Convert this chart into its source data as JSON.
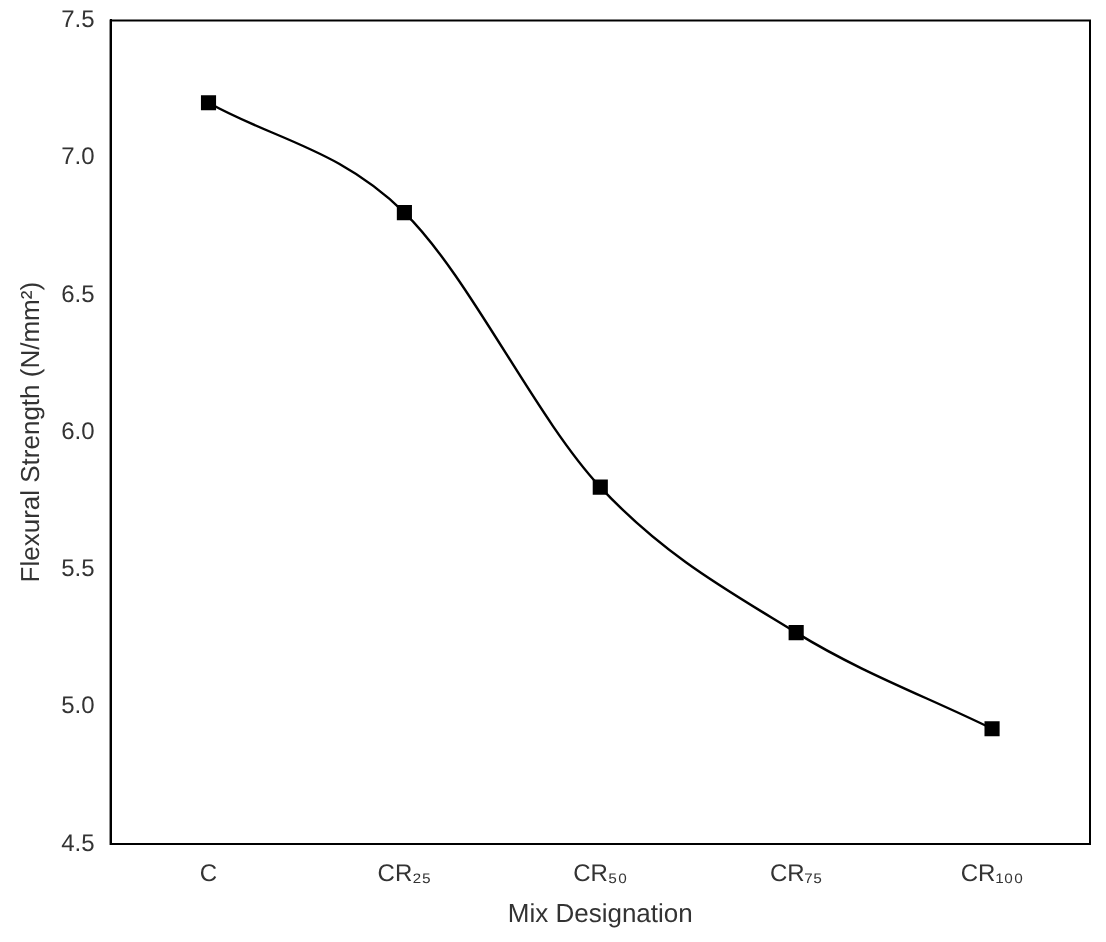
{
  "chart_data": {
    "type": "line",
    "xlabel": "Mix Designation",
    "ylabel": "Flexural Strength (N/mm²)",
    "categories": [
      "C",
      "CR₂₅",
      "CR₅₀",
      "CR₇₅",
      "CR₁₀₀"
    ],
    "series": [
      {
        "color": "#000000",
        "values": [
          7.2,
          6.8,
          5.8,
          5.27,
          4.92
        ]
      }
    ],
    "ylim": [
      4.5,
      7.5
    ],
    "yticks": [
      4.5,
      {
        "value": 5,
        "label": "5.0"
      },
      5.5,
      {
        "value": 6,
        "label": "6.0"
      },
      6.5,
      {
        "value": 7,
        "label": "7.0"
      },
      7.5
    ],
    "marker": "square",
    "line_style": "solid",
    "grid": false,
    "legend": false
  }
}
